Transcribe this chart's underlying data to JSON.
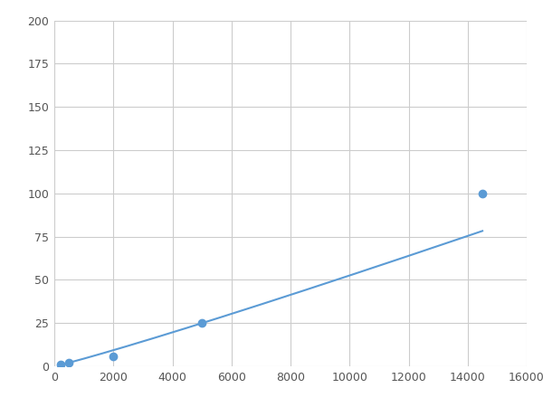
{
  "x": [
    200,
    500,
    2000,
    5000,
    14500
  ],
  "y": [
    1,
    2,
    6,
    25,
    100
  ],
  "line_color": "#5b9bd5",
  "marker_color": "#5b9bd5",
  "marker_size": 6,
  "line_width": 1.5,
  "xlim": [
    0,
    16000
  ],
  "ylim": [
    0,
    200
  ],
  "xticks": [
    0,
    2000,
    4000,
    6000,
    8000,
    10000,
    12000,
    14000,
    16000
  ],
  "yticks": [
    0,
    25,
    50,
    75,
    100,
    125,
    150,
    175,
    200
  ],
  "grid_color": "#cccccc",
  "bg_color": "#ffffff",
  "fig_bg_color": "#ffffff",
  "tick_label_size": 9,
  "tick_color": "#555555"
}
